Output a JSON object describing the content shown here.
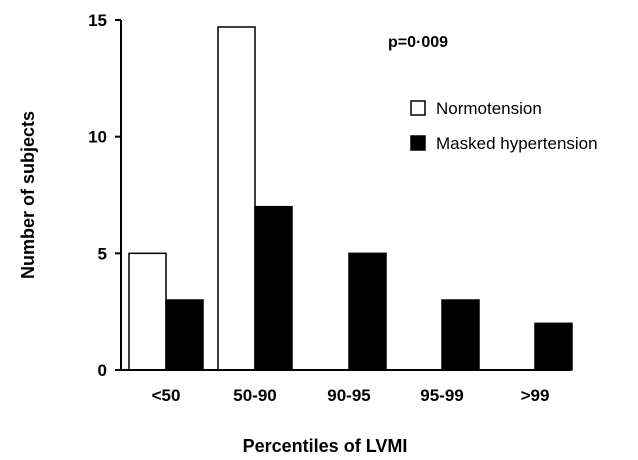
{
  "chart_data": {
    "type": "bar",
    "categories": [
      "<50",
      "50-90",
      "90-95",
      "95-99",
      ">99"
    ],
    "series": [
      {
        "name": "Normotension",
        "values": [
          5,
          14.7,
          0,
          0,
          0
        ],
        "color": "#ffffff",
        "stroke": "#000000"
      },
      {
        "name": "Masked hypertension",
        "values": [
          3,
          7,
          5,
          3,
          2
        ],
        "color": "#000000",
        "stroke": "#000000"
      }
    ],
    "title": "",
    "xlabel": "Percentiles of LVMI",
    "ylabel": "Number of subjects",
    "ylim": [
      0,
      15
    ],
    "yticks": [
      0,
      5,
      10,
      15
    ],
    "grid": false,
    "legend_position": "top-right",
    "annotation": "p=0·009"
  }
}
